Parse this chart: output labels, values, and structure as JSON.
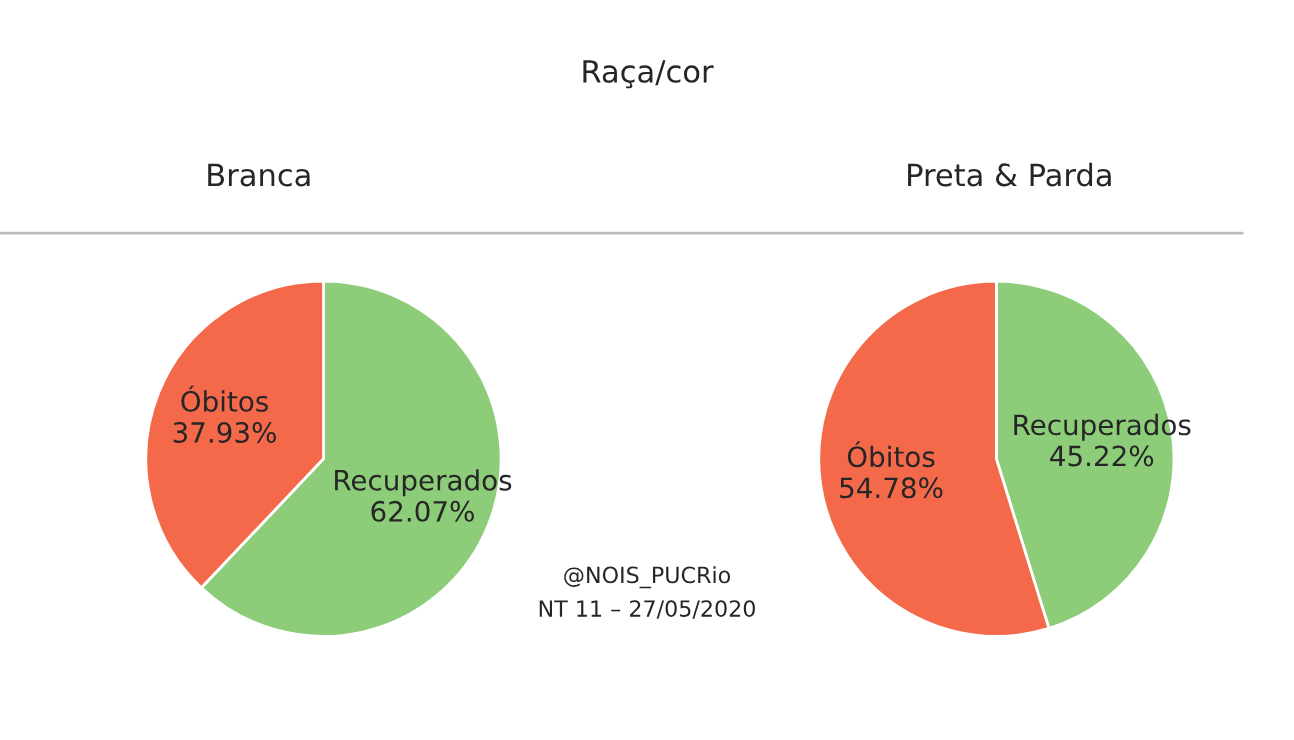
{
  "chart_data": [
    {
      "type": "pie",
      "title": "Branca",
      "categories": [
        "Recuperados",
        "Óbitos"
      ],
      "values": [
        62.07,
        37.93
      ],
      "colors": [
        "#8dcd79",
        "#f5694b"
      ],
      "value_labels": [
        "62.07%",
        "37.93%"
      ],
      "annotations": [
        "Raça/cor",
        "@NOIS_PUCRio",
        "NT 11 – 27/05/2020"
      ]
    },
    {
      "type": "pie",
      "title": "Preta & Parda",
      "categories": [
        "Recuperados",
        "Óbitos"
      ],
      "values": [
        45.22,
        54.78
      ],
      "colors": [
        "#8dcd79",
        "#f5694b"
      ],
      "value_labels": [
        "45.22%",
        "54.78%"
      ]
    }
  ]
}
